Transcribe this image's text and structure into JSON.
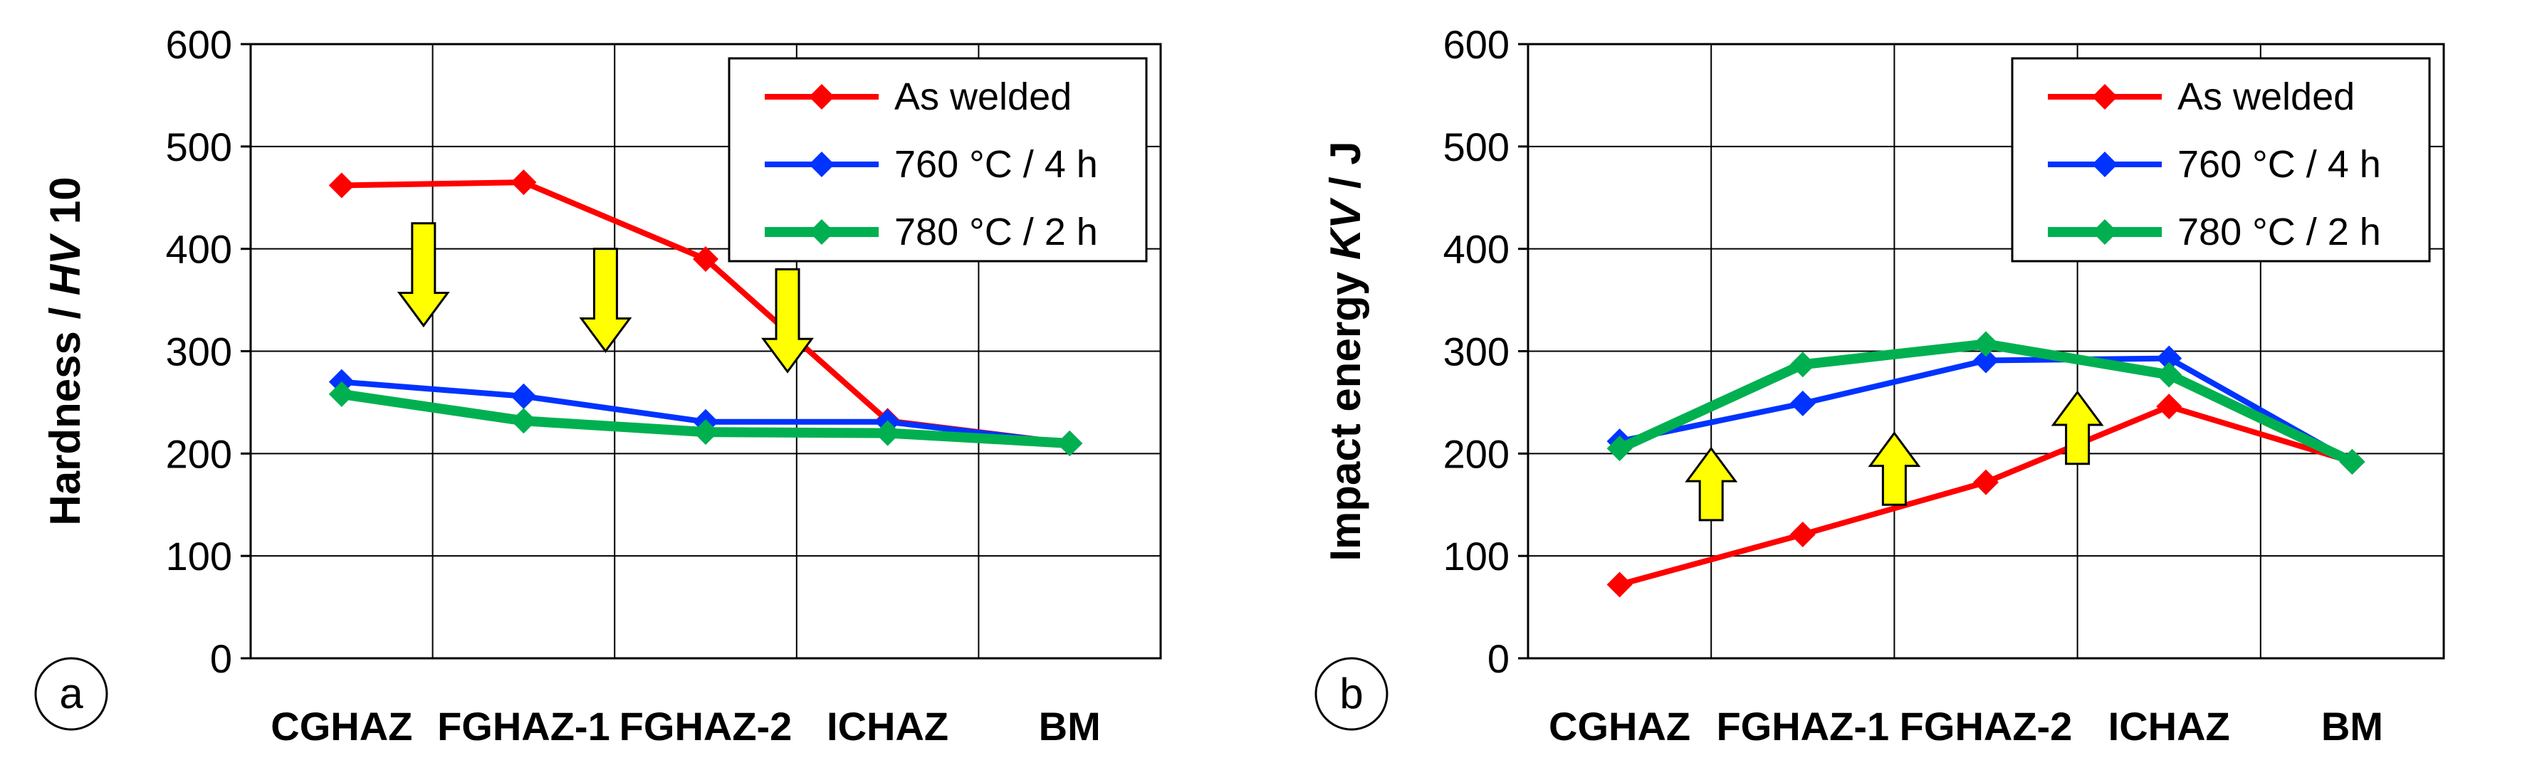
{
  "figure": {
    "title": ""
  },
  "colors": {
    "As welded": "#ff0000",
    "760 °C / 4 h": "#0033ff",
    "780 °C / 2 h": "#00b050",
    "arrow_fill": "#ffff00",
    "arrow_stroke": "#000000"
  },
  "chart_data": [
    {
      "type": "line",
      "panel_label": "a",
      "title": "",
      "xlabel": "",
      "ylabel_parts": [
        "Hardness / ",
        "HV",
        " 10"
      ],
      "categories": [
        "CGHAZ",
        "FGHAZ-1",
        "FGHAZ-2",
        "ICHAZ",
        "BM"
      ],
      "ylim": [
        0,
        600
      ],
      "yticks": [
        0,
        100,
        200,
        300,
        400,
        500,
        600
      ],
      "grid": true,
      "legend_position": "top-right",
      "series": [
        {
          "name": "As welded",
          "values": [
            462,
            465,
            390,
            232,
            210
          ]
        },
        {
          "name": "760 °C / 4 h",
          "values": [
            270,
            256,
            231,
            231,
            210
          ]
        },
        {
          "name": "780 °C / 2 h",
          "values": [
            258,
            232,
            221,
            220,
            210
          ]
        }
      ],
      "arrows": [
        {
          "direction": "down",
          "x": 1.45,
          "y_from": 425,
          "y_to": 325
        },
        {
          "direction": "down",
          "x": 2.45,
          "y_from": 400,
          "y_to": 300
        },
        {
          "direction": "down",
          "x": 3.45,
          "y_from": 380,
          "y_to": 280
        }
      ]
    },
    {
      "type": "line",
      "panel_label": "b",
      "title": "",
      "xlabel": "",
      "ylabel_parts": [
        "Impact energy  ",
        "KV",
        " / J"
      ],
      "categories": [
        "CGHAZ",
        "FGHAZ-1",
        "FGHAZ-2",
        "ICHAZ",
        "BM"
      ],
      "ylim": [
        0,
        600
      ],
      "yticks": [
        0,
        100,
        200,
        300,
        400,
        500,
        600
      ],
      "grid": true,
      "legend_position": "top-right",
      "series": [
        {
          "name": "As welded",
          "values": [
            72,
            121,
            172,
            246,
            192
          ]
        },
        {
          "name": "760 °C / 4 h",
          "values": [
            212,
            249,
            291,
            293,
            192
          ]
        },
        {
          "name": "780 °C / 2 h",
          "values": [
            205,
            287,
            307,
            277,
            192
          ]
        }
      ],
      "arrows": [
        {
          "direction": "up",
          "x": 1.5,
          "y_from": 135,
          "y_to": 205
        },
        {
          "direction": "up",
          "x": 2.5,
          "y_from": 150,
          "y_to": 220
        },
        {
          "direction": "up",
          "x": 3.5,
          "y_from": 190,
          "y_to": 260
        }
      ]
    }
  ]
}
